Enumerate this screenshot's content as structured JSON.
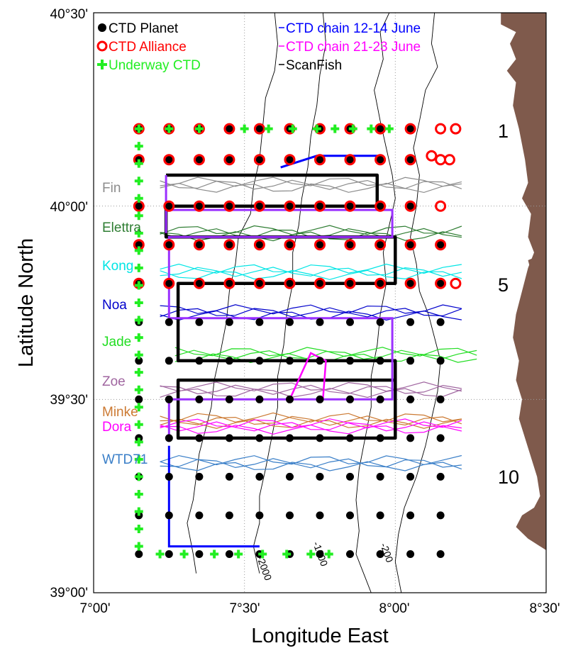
{
  "axes": {
    "xlabel": "Longitude East",
    "ylabel": "Latitude North",
    "x_ticks": [
      "7°00'",
      "7°30'",
      "8°00'",
      "8°30'"
    ],
    "y_ticks": [
      "40°30'",
      "40°00'",
      "39°30'",
      "39°00'"
    ],
    "x_range_deg": [
      7.0,
      8.5
    ],
    "y_range_deg": [
      39.0,
      40.5
    ],
    "grid": "dotted"
  },
  "legend": {
    "left": [
      {
        "label": "CTD Planet",
        "marker": "filled-circle",
        "color": "#000000"
      },
      {
        "label": "CTD Alliance",
        "marker": "open-circle",
        "color": "#ff0000"
      },
      {
        "label": "Underway CTD",
        "marker": "plus",
        "color": "#22ee22"
      }
    ],
    "right": [
      {
        "label": "CTD chain 12-14 June",
        "marker": "line",
        "color": "#0000ff"
      },
      {
        "label": "CTD chain 21-23 June",
        "marker": "line",
        "color": "#ff00ff"
      },
      {
        "label": "ScanFish",
        "marker": "line",
        "color": "#000000"
      }
    ]
  },
  "glider_labels": [
    {
      "name": "Fin",
      "color": "#8c8c8c",
      "lat": 40.045
    },
    {
      "name": "Elettra",
      "color": "#2e7d32",
      "lat": 39.935
    },
    {
      "name": "Kong",
      "color": "#00e5e5",
      "lat": 39.83
    },
    {
      "name": "Noa",
      "color": "#0000cc",
      "lat": 39.725
    },
    {
      "name": "Jade",
      "color": "#22dd22",
      "lat": 39.62
    },
    {
      "name": "Zoe",
      "color": "#a066a0",
      "lat": 39.52
    },
    {
      "name": "Minke",
      "color": "#cc7a33",
      "lat": 39.44
    },
    {
      "name": "Dora",
      "color": "#ff00ff",
      "lat": 39.405
    },
    {
      "name": "WTD71",
      "color": "#3a7fc8",
      "lat": 39.33
    }
  ],
  "section_numbers": [
    {
      "label": "1",
      "lat": 40.2
    },
    {
      "label": "5",
      "lat": 39.8
    },
    {
      "label": "10",
      "lat": 39.3
    }
  ],
  "isobaths": [
    {
      "label": "-2000",
      "depth_m": -2000
    },
    {
      "label": "-1000",
      "depth_m": -1000
    },
    {
      "label": "-200",
      "depth_m": -200
    }
  ],
  "colors": {
    "land": "#7f5a4c",
    "planet": "#000000",
    "alliance": "#ff0000",
    "underway": "#22ee22",
    "chain_june12": "#0000ff",
    "chain_june21": "#ff00ff",
    "chain_june21_box": "#9b30ff",
    "scanfish": "#000000"
  }
}
